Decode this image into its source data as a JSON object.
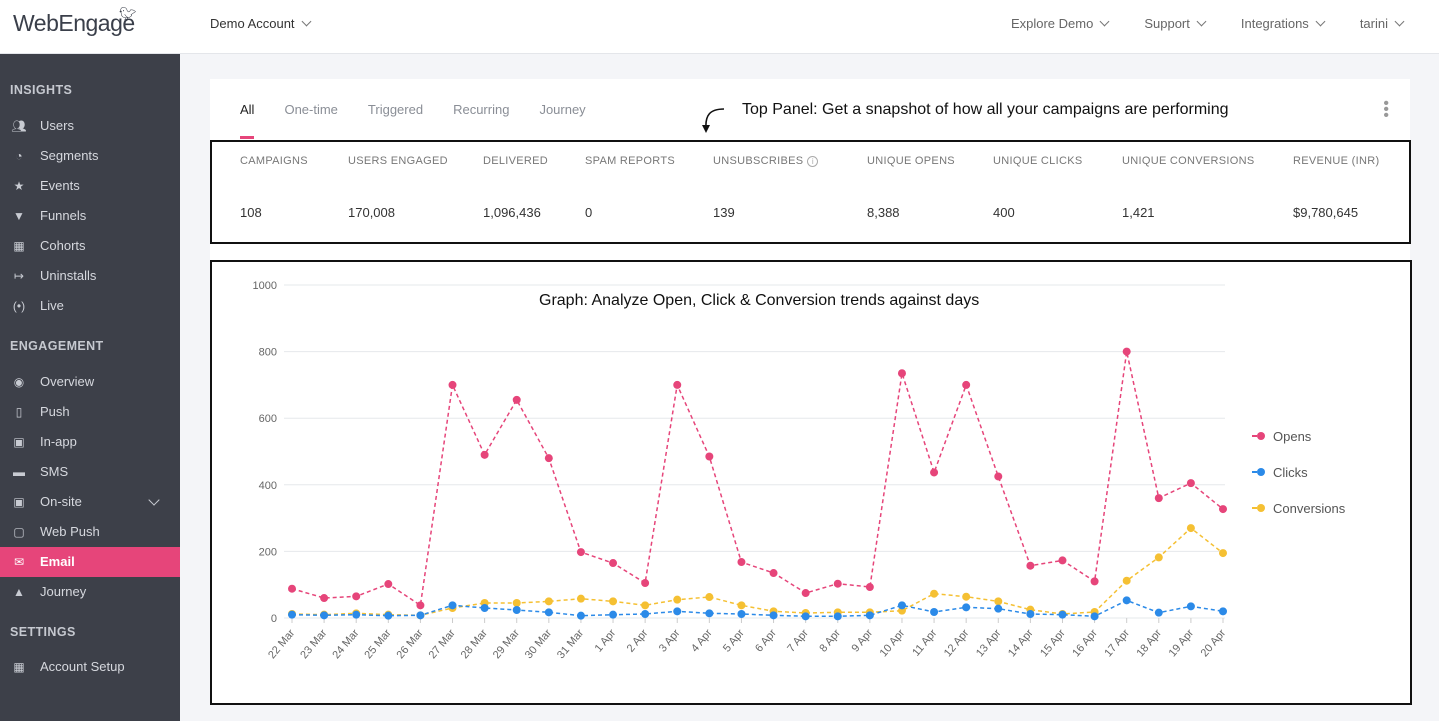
{
  "header": {
    "logo": "WebEngage",
    "account": "Demo Account",
    "nav": [
      "Explore Demo",
      "Support",
      "Integrations",
      "tarini"
    ]
  },
  "sidebar": {
    "insights_title": "INSIGHTS",
    "insights": [
      {
        "label": "Users",
        "icon": "users-icon"
      },
      {
        "label": "Segments",
        "icon": "segments-icon"
      },
      {
        "label": "Events",
        "icon": "events-icon"
      },
      {
        "label": "Funnels",
        "icon": "funnels-icon"
      },
      {
        "label": "Cohorts",
        "icon": "cohorts-icon"
      },
      {
        "label": "Uninstalls",
        "icon": "uninstalls-icon"
      },
      {
        "label": "Live",
        "icon": "live-icon"
      }
    ],
    "engagement_title": "ENGAGEMENT",
    "engagement": [
      {
        "label": "Overview",
        "icon": "eye-icon"
      },
      {
        "label": "Push",
        "icon": "push-icon"
      },
      {
        "label": "In-app",
        "icon": "in-app-icon"
      },
      {
        "label": "SMS",
        "icon": "sms-icon"
      },
      {
        "label": "On-site",
        "icon": "on-site-icon"
      },
      {
        "label": "Web Push",
        "icon": "web-push-icon"
      },
      {
        "label": "Email",
        "icon": "email-icon"
      },
      {
        "label": "Journey",
        "icon": "journey-icon"
      }
    ],
    "settings_title": "SETTINGS",
    "settings": [
      {
        "label": "Account Setup",
        "icon": "account-setup-icon"
      }
    ]
  },
  "tabs": [
    "All",
    "One-time",
    "Triggered",
    "Recurring",
    "Journey"
  ],
  "annotations": {
    "top_panel": "Top Panel: Get a snapshot of how all your campaigns are performing",
    "graph": "Graph: Analyze Open, Click & Conversion trends against days"
  },
  "stats": [
    {
      "label": "CAMPAIGNS",
      "value": "108"
    },
    {
      "label": "USERS ENGAGED",
      "value": "170,008"
    },
    {
      "label": "DELIVERED",
      "value": "1,096,436"
    },
    {
      "label": "SPAM REPORTS",
      "value": "0"
    },
    {
      "label": "UNSUBSCRIBES",
      "value": "139"
    },
    {
      "label": "UNIQUE OPENS",
      "value": "8,388"
    },
    {
      "label": "UNIQUE CLICKS",
      "value": "400"
    },
    {
      "label": "UNIQUE CONVERSIONS",
      "value": "1,421"
    },
    {
      "label": "REVENUE (INR)",
      "value": "$9,780,645"
    }
  ],
  "colors": {
    "accent": "#e6457a",
    "opens": "#e6457a",
    "clicks": "#2b8ae8",
    "conversions": "#f5c033"
  },
  "chart_data": {
    "type": "line",
    "title": "Graph: Analyze Open, Click & Conversion trends against days",
    "xlabel": "",
    "ylabel": "",
    "ylim": [
      0,
      1000
    ],
    "yticks": [
      0,
      200,
      400,
      600,
      800,
      1000
    ],
    "grid": true,
    "legend_position": "right",
    "categories": [
      "22 Mar",
      "23 Mar",
      "24 Mar",
      "25 Mar",
      "26 Mar",
      "27 Mar",
      "28 Mar",
      "29 Mar",
      "30 Mar",
      "31 Mar",
      "1 Apr",
      "2 Apr",
      "3 Apr",
      "4 Apr",
      "5 Apr",
      "6 Apr",
      "7 Apr",
      "8 Apr",
      "9 Apr",
      "10 Apr",
      "11 Apr",
      "12 Apr",
      "13 Apr",
      "14 Apr",
      "15 Apr",
      "16 Apr",
      "17 Apr",
      "18 Apr",
      "19 Apr",
      "20 Apr"
    ],
    "series": [
      {
        "name": "Opens",
        "values": [
          88,
          60,
          65,
          102,
          38,
          700,
          490,
          655,
          480,
          198,
          165,
          105,
          700,
          485,
          168,
          135,
          75,
          103,
          93,
          735,
          437,
          700,
          425,
          157,
          173,
          110,
          800,
          360,
          405,
          327
        ]
      },
      {
        "name": "Clicks",
        "values": [
          10,
          8,
          10,
          7,
          8,
          38,
          30,
          24,
          17,
          7,
          10,
          12,
          20,
          14,
          12,
          8,
          5,
          5,
          8,
          38,
          18,
          32,
          28,
          12,
          10,
          5,
          53,
          16,
          35,
          20
        ]
      },
      {
        "name": "Conversions",
        "values": [
          12,
          10,
          14,
          10,
          8,
          30,
          45,
          45,
          50,
          58,
          50,
          38,
          55,
          63,
          38,
          20,
          15,
          17,
          17,
          22,
          73,
          64,
          50,
          25,
          12,
          18,
          112,
          182,
          270,
          195
        ]
      }
    ]
  }
}
